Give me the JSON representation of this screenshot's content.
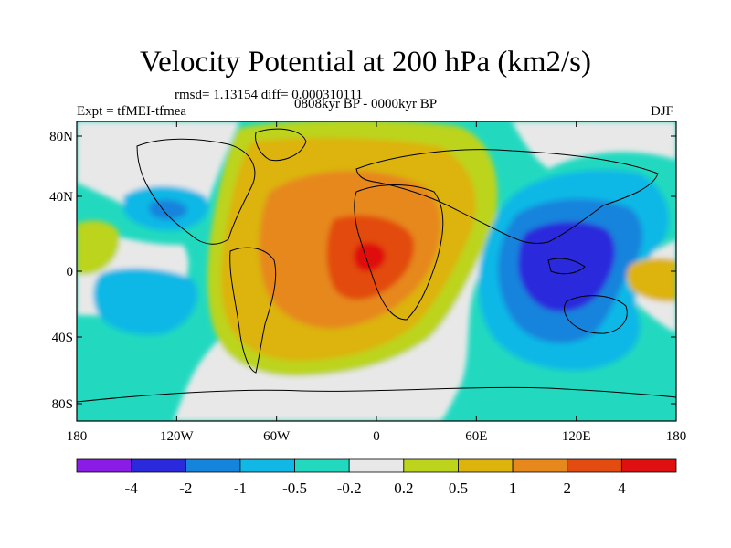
{
  "map": {
    "title": "Velocity Potential at 200 hPa (km2/s)",
    "stats": "rmsd= 1.13154 diff= 0.000310111",
    "experiment": "Expt = tfMEI-tfmea",
    "period": "0808kyr BP - 0000kyr BP",
    "season": "DJF",
    "lat_ticks": [
      "80N",
      "40N",
      "0",
      "40S",
      "80S"
    ],
    "lon_ticks": [
      "180",
      "120W",
      "60W",
      "0",
      "60E",
      "120E",
      "180"
    ]
  },
  "colorbar": {
    "colors": [
      "#8a1ce6",
      "#2a2adc",
      "#1584dc",
      "#11b8e6",
      "#22d9c0",
      "#e8e8e8",
      "#bcd41c",
      "#dcb40c",
      "#e6881c",
      "#e24c10",
      "#e01010"
    ],
    "labels": [
      "-4",
      "-2",
      "-1",
      "-0.5",
      "-0.2",
      "0.2",
      "0.5",
      "1",
      "2",
      "4"
    ]
  }
}
